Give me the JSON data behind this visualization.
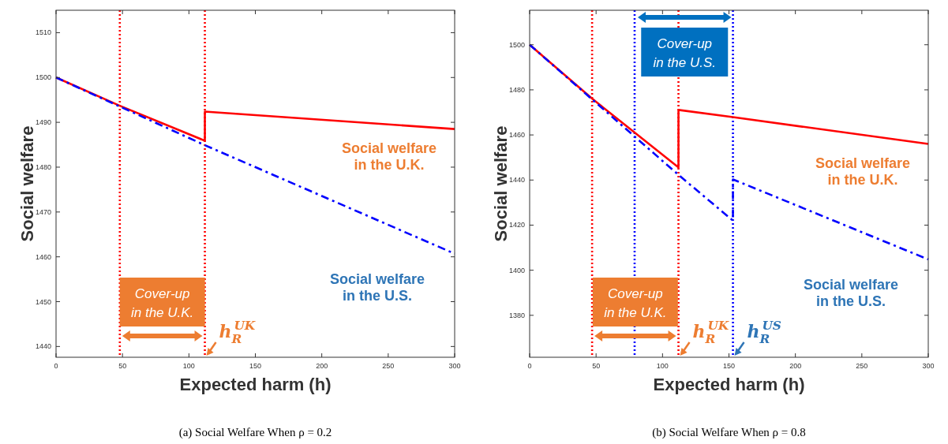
{
  "chart_data": [
    {
      "type": "line",
      "title": "(a)  Social Welfare When ρ = 0.2",
      "xlabel": "Expected harm (h)",
      "ylabel": "Social welfare",
      "xlim": [
        0,
        300
      ],
      "xticks": [
        0,
        50,
        100,
        150,
        200,
        250,
        300
      ],
      "ylim": [
        1437.6,
        1515
      ],
      "yticks": [
        1440,
        1450,
        1460,
        1470,
        1480,
        1490,
        1500,
        1510
      ],
      "grid": false,
      "series": [
        {
          "name": "Social welfare in the U.K.",
          "color": "#ff0000",
          "line_style": "solid",
          "x": [
            0,
            48,
            112,
            112,
            300
          ],
          "values": [
            1500,
            1493.7,
            1485.9,
            1492.4,
            1488.5
          ]
        },
        {
          "name": "Social welfare in the U.S.",
          "color": "#0000ff",
          "line_style": "dashed",
          "x": [
            0,
            112,
            300
          ],
          "values": [
            1500,
            1484.9,
            1460.7
          ]
        }
      ],
      "ref_lines": [
        {
          "axis": "x",
          "value": 48,
          "color": "#ff0000",
          "line_style": "dotted"
        },
        {
          "axis": "x",
          "value": 112,
          "color": "#ff0000",
          "line_style": "dotted"
        }
      ],
      "annotations": [
        "Cover-up in the U.K.",
        "h$_{R}$$^{UK}$"
      ]
    },
    {
      "type": "line",
      "title": "(b)  Social Welfare When ρ = 0.8",
      "xlabel": "Expected harm (h)",
      "ylabel": "Social welfare",
      "xlim": [
        0,
        300
      ],
      "xticks": [
        0,
        50,
        100,
        150,
        200,
        250,
        300
      ],
      "ylim": [
        1361.4,
        1515.3
      ],
      "yticks": [
        1380,
        1400,
        1420,
        1440,
        1460,
        1480,
        1500
      ],
      "grid": false,
      "series": [
        {
          "name": "Social welfare in the U.K.",
          "color": "#ff0000",
          "line_style": "solid",
          "x": [
            0,
            47,
            112,
            112,
            153,
            300
          ],
          "values": [
            1500,
            1476.1,
            1445.6,
            1471.1,
            1467.9,
            1456
          ]
        },
        {
          "name": "Social welfare in the U.S.",
          "color": "#0000ff",
          "line_style": "dashed",
          "x": [
            0,
            112,
            153,
            153,
            300
          ],
          "values": [
            1500,
            1442.3,
            1422,
            1440.3,
            1404.8
          ]
        }
      ],
      "ref_lines": [
        {
          "axis": "x",
          "value": 47,
          "color": "#ff0000",
          "line_style": "dotted"
        },
        {
          "axis": "x",
          "value": 79,
          "color": "#0000ff",
          "line_style": "dotted"
        },
        {
          "axis": "x",
          "value": 112,
          "color": "#ff0000",
          "line_style": "dotted"
        },
        {
          "axis": "x",
          "value": 153,
          "color": "#0000ff",
          "line_style": "dotted"
        }
      ],
      "annotations": [
        "Cover-up in the U.K.",
        "h$_{R}$$^{UK}$",
        "Cover-up in the U.S.",
        "h$_{R}$$^{US}$"
      ]
    }
  ]
}
